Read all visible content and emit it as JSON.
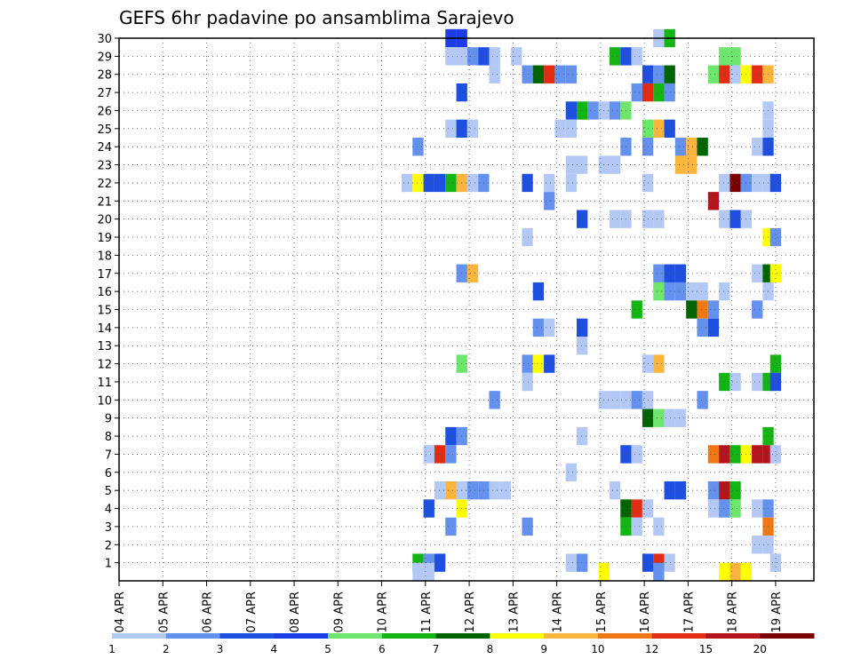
{
  "chart_data": {
    "type": "heatmap",
    "title": "GEFS 6hr padavine po ansamblima Sarajevo",
    "xlabel": "",
    "ylabel": "",
    "x_ticks": [
      "04 APR",
      "05 APR",
      "06 APR",
      "07 APR",
      "08 APR",
      "09 APR",
      "10 APR",
      "11 APR",
      "12 APR",
      "13 APR",
      "14 APR",
      "15 APR",
      "16 APR",
      "17 APR",
      "18 APR",
      "19 APR"
    ],
    "y_ticks": [
      "1",
      "2",
      "3",
      "4",
      "5",
      "6",
      "7",
      "8",
      "9",
      "10",
      "11",
      "12",
      "13",
      "14",
      "15",
      "16",
      "17",
      "18",
      "19",
      "20",
      "21",
      "22",
      "23",
      "24",
      "25",
      "26",
      "27",
      "28",
      "29",
      "30"
    ],
    "ylim": [
      0,
      30
    ],
    "grid": true,
    "color_levels": [
      "1",
      "2",
      "3",
      "4",
      "5",
      "6",
      "7",
      "8",
      "9",
      "10",
      "12",
      "15",
      "20"
    ],
    "colors": [
      "#b4c8f5",
      "#6490ee",
      "#1e4fe0",
      "#1e3ce6",
      "#6ee66e",
      "#14b414",
      "#006400",
      "#ffff00",
      "#fbb43c",
      "#f07814",
      "#e12d14",
      "#b4141e",
      "#780000"
    ],
    "cells": [
      {
        "member": 30,
        "x": 11.58,
        "v": 4
      },
      {
        "member": 30,
        "x": 11.83,
        "v": 4
      },
      {
        "member": 30,
        "x": 16.33,
        "v": 1
      },
      {
        "member": 30,
        "x": 16.58,
        "v": 6
      },
      {
        "member": 29,
        "x": 11.58,
        "v": 1
      },
      {
        "member": 29,
        "x": 11.83,
        "v": 1
      },
      {
        "member": 29,
        "x": 12.08,
        "v": 2
      },
      {
        "member": 29,
        "x": 12.33,
        "v": 3
      },
      {
        "member": 29,
        "x": 12.58,
        "v": 1
      },
      {
        "member": 29,
        "x": 13.08,
        "v": 1
      },
      {
        "member": 29,
        "x": 15.33,
        "v": 6
      },
      {
        "member": 29,
        "x": 15.58,
        "v": 3
      },
      {
        "member": 29,
        "x": 15.83,
        "v": 1
      },
      {
        "member": 29,
        "x": 17.83,
        "v": 5
      },
      {
        "member": 29,
        "x": 18.08,
        "v": 5
      },
      {
        "member": 28,
        "x": 12.58,
        "v": 1
      },
      {
        "member": 28,
        "x": 13.33,
        "v": 2
      },
      {
        "member": 28,
        "x": 13.58,
        "v": 7
      },
      {
        "member": 28,
        "x": 13.83,
        "v": 12
      },
      {
        "member": 28,
        "x": 14.08,
        "v": 2
      },
      {
        "member": 28,
        "x": 14.33,
        "v": 2
      },
      {
        "member": 28,
        "x": 16.08,
        "v": 3
      },
      {
        "member": 28,
        "x": 16.33,
        "v": 2
      },
      {
        "member": 28,
        "x": 16.58,
        "v": 7
      },
      {
        "member": 28,
        "x": 17.58,
        "v": 5
      },
      {
        "member": 28,
        "x": 17.83,
        "v": 12
      },
      {
        "member": 28,
        "x": 18.08,
        "v": 1
      },
      {
        "member": 28,
        "x": 18.33,
        "v": 8
      },
      {
        "member": 28,
        "x": 18.58,
        "v": 12
      },
      {
        "member": 28,
        "x": 18.83,
        "v": 9
      },
      {
        "member": 27,
        "x": 11.83,
        "v": 3
      },
      {
        "member": 27,
        "x": 15.83,
        "v": 2
      },
      {
        "member": 27,
        "x": 16.08,
        "v": 12
      },
      {
        "member": 27,
        "x": 16.33,
        "v": 6
      },
      {
        "member": 27,
        "x": 16.58,
        "v": 2
      },
      {
        "member": 26,
        "x": 14.33,
        "v": 3
      },
      {
        "member": 26,
        "x": 14.58,
        "v": 6
      },
      {
        "member": 26,
        "x": 14.83,
        "v": 2
      },
      {
        "member": 26,
        "x": 15.08,
        "v": 1
      },
      {
        "member": 26,
        "x": 15.33,
        "v": 2
      },
      {
        "member": 26,
        "x": 15.58,
        "v": 5
      },
      {
        "member": 26,
        "x": 18.83,
        "v": 1
      },
      {
        "member": 25,
        "x": 11.58,
        "v": 1
      },
      {
        "member": 25,
        "x": 11.83,
        "v": 3
      },
      {
        "member": 25,
        "x": 12.08,
        "v": 1
      },
      {
        "member": 25,
        "x": 14.08,
        "v": 1
      },
      {
        "member": 25,
        "x": 14.33,
        "v": 1
      },
      {
        "member": 25,
        "x": 16.08,
        "v": 5
      },
      {
        "member": 25,
        "x": 16.33,
        "v": 9
      },
      {
        "member": 25,
        "x": 16.58,
        "v": 3
      },
      {
        "member": 25,
        "x": 18.83,
        "v": 1
      },
      {
        "member": 24,
        "x": 10.83,
        "v": 2
      },
      {
        "member": 24,
        "x": 15.58,
        "v": 2
      },
      {
        "member": 24,
        "x": 16.08,
        "v": 2
      },
      {
        "member": 24,
        "x": 16.83,
        "v": 2
      },
      {
        "member": 24,
        "x": 17.08,
        "v": 9
      },
      {
        "member": 24,
        "x": 17.33,
        "v": 7
      },
      {
        "member": 24,
        "x": 18.58,
        "v": 1
      },
      {
        "member": 24,
        "x": 18.83,
        "v": 3
      },
      {
        "member": 23,
        "x": 14.33,
        "v": 1
      },
      {
        "member": 23,
        "x": 14.58,
        "v": 1
      },
      {
        "member": 23,
        "x": 15.08,
        "v": 1
      },
      {
        "member": 23,
        "x": 15.33,
        "v": 1
      },
      {
        "member": 23,
        "x": 16.83,
        "v": 9
      },
      {
        "member": 23,
        "x": 17.08,
        "v": 9
      },
      {
        "member": 22,
        "x": 10.58,
        "v": 1
      },
      {
        "member": 22,
        "x": 10.83,
        "v": 8
      },
      {
        "member": 22,
        "x": 11.08,
        "v": 3
      },
      {
        "member": 22,
        "x": 11.33,
        "v": 3
      },
      {
        "member": 22,
        "x": 11.58,
        "v": 6
      },
      {
        "member": 22,
        "x": 11.83,
        "v": 9
      },
      {
        "member": 22,
        "x": 12.08,
        "v": 1
      },
      {
        "member": 22,
        "x": 12.33,
        "v": 2
      },
      {
        "member": 22,
        "x": 13.33,
        "v": 3
      },
      {
        "member": 22,
        "x": 13.83,
        "v": 1
      },
      {
        "member": 22,
        "x": 14.33,
        "v": 1
      },
      {
        "member": 22,
        "x": 16.08,
        "v": 1
      },
      {
        "member": 22,
        "x": 17.83,
        "v": 1
      },
      {
        "member": 22,
        "x": 18.08,
        "v": 20
      },
      {
        "member": 22,
        "x": 18.33,
        "v": 2
      },
      {
        "member": 22,
        "x": 18.58,
        "v": 1
      },
      {
        "member": 22,
        "x": 18.83,
        "v": 1
      },
      {
        "member": 22,
        "x": 19.0,
        "v": 3
      },
      {
        "member": 21,
        "x": 13.83,
        "v": 2
      },
      {
        "member": 21,
        "x": 17.58,
        "v": 15
      },
      {
        "member": 20,
        "x": 14.58,
        "v": 3
      },
      {
        "member": 20,
        "x": 15.33,
        "v": 1
      },
      {
        "member": 20,
        "x": 15.58,
        "v": 1
      },
      {
        "member": 20,
        "x": 16.08,
        "v": 1
      },
      {
        "member": 20,
        "x": 16.33,
        "v": 1
      },
      {
        "member": 20,
        "x": 17.83,
        "v": 1
      },
      {
        "member": 20,
        "x": 18.08,
        "v": 3
      },
      {
        "member": 20,
        "x": 18.33,
        "v": 1
      },
      {
        "member": 19,
        "x": 13.33,
        "v": 1
      },
      {
        "member": 19,
        "x": 18.83,
        "v": 8
      },
      {
        "member": 19,
        "x": 19.0,
        "v": 2
      },
      {
        "member": 17,
        "x": 11.83,
        "v": 2
      },
      {
        "member": 17,
        "x": 12.08,
        "v": 9
      },
      {
        "member": 17,
        "x": 16.33,
        "v": 2
      },
      {
        "member": 17,
        "x": 16.58,
        "v": 3
      },
      {
        "member": 17,
        "x": 16.83,
        "v": 3
      },
      {
        "member": 17,
        "x": 18.58,
        "v": 1
      },
      {
        "member": 17,
        "x": 18.83,
        "v": 7
      },
      {
        "member": 17,
        "x": 19.0,
        "v": 8
      },
      {
        "member": 16,
        "x": 13.58,
        "v": 3
      },
      {
        "member": 16,
        "x": 16.33,
        "v": 5
      },
      {
        "member": 16,
        "x": 16.58,
        "v": 2
      },
      {
        "member": 16,
        "x": 16.83,
        "v": 2
      },
      {
        "member": 16,
        "x": 17.08,
        "v": 1
      },
      {
        "member": 16,
        "x": 17.33,
        "v": 1
      },
      {
        "member": 16,
        "x": 17.83,
        "v": 1
      },
      {
        "member": 16,
        "x": 18.83,
        "v": 1
      },
      {
        "member": 15,
        "x": 15.83,
        "v": 6
      },
      {
        "member": 15,
        "x": 17.08,
        "v": 7
      },
      {
        "member": 15,
        "x": 17.33,
        "v": 10
      },
      {
        "member": 15,
        "x": 17.58,
        "v": 2
      },
      {
        "member": 15,
        "x": 18.58,
        "v": 2
      },
      {
        "member": 14,
        "x": 13.58,
        "v": 2
      },
      {
        "member": 14,
        "x": 13.83,
        "v": 1
      },
      {
        "member": 14,
        "x": 14.58,
        "v": 3
      },
      {
        "member": 14,
        "x": 17.33,
        "v": 2
      },
      {
        "member": 14,
        "x": 17.58,
        "v": 3
      },
      {
        "member": 13,
        "x": 14.58,
        "v": 1
      },
      {
        "member": 12,
        "x": 11.83,
        "v": 5
      },
      {
        "member": 12,
        "x": 13.33,
        "v": 2
      },
      {
        "member": 12,
        "x": 13.58,
        "v": 8
      },
      {
        "member": 12,
        "x": 13.83,
        "v": 3
      },
      {
        "member": 12,
        "x": 16.08,
        "v": 1
      },
      {
        "member": 12,
        "x": 16.33,
        "v": 9
      },
      {
        "member": 12,
        "x": 19.0,
        "v": 6
      },
      {
        "member": 11,
        "x": 13.33,
        "v": 1
      },
      {
        "member": 11,
        "x": 17.83,
        "v": 6
      },
      {
        "member": 11,
        "x": 18.08,
        "v": 1
      },
      {
        "member": 11,
        "x": 18.58,
        "v": 1
      },
      {
        "member": 11,
        "x": 18.83,
        "v": 6
      },
      {
        "member": 11,
        "x": 19.0,
        "v": 3
      },
      {
        "member": 10,
        "x": 12.58,
        "v": 2
      },
      {
        "member": 10,
        "x": 15.08,
        "v": 1
      },
      {
        "member": 10,
        "x": 15.33,
        "v": 1
      },
      {
        "member": 10,
        "x": 15.58,
        "v": 1
      },
      {
        "member": 10,
        "x": 15.83,
        "v": 2
      },
      {
        "member": 10,
        "x": 16.08,
        "v": 1
      },
      {
        "member": 10,
        "x": 17.33,
        "v": 2
      },
      {
        "member": 9,
        "x": 16.08,
        "v": 7
      },
      {
        "member": 9,
        "x": 16.33,
        "v": 5
      },
      {
        "member": 9,
        "x": 16.58,
        "v": 1
      },
      {
        "member": 9,
        "x": 16.83,
        "v": 1
      },
      {
        "member": 8,
        "x": 11.58,
        "v": 3
      },
      {
        "member": 8,
        "x": 11.83,
        "v": 2
      },
      {
        "member": 8,
        "x": 14.58,
        "v": 1
      },
      {
        "member": 8,
        "x": 18.83,
        "v": 6
      },
      {
        "member": 7,
        "x": 11.08,
        "v": 1
      },
      {
        "member": 7,
        "x": 11.33,
        "v": 12
      },
      {
        "member": 7,
        "x": 11.58,
        "v": 2
      },
      {
        "member": 7,
        "x": 15.58,
        "v": 3
      },
      {
        "member": 7,
        "x": 15.83,
        "v": 1
      },
      {
        "member": 7,
        "x": 17.58,
        "v": 10
      },
      {
        "member": 7,
        "x": 17.83,
        "v": 15
      },
      {
        "member": 7,
        "x": 18.08,
        "v": 6
      },
      {
        "member": 7,
        "x": 18.33,
        "v": 8
      },
      {
        "member": 7,
        "x": 18.58,
        "v": 15
      },
      {
        "member": 7,
        "x": 18.83,
        "v": 15
      },
      {
        "member": 7,
        "x": 19.0,
        "v": 1
      },
      {
        "member": 6,
        "x": 14.33,
        "v": 1
      },
      {
        "member": 5,
        "x": 11.33,
        "v": 1
      },
      {
        "member": 5,
        "x": 11.58,
        "v": 9
      },
      {
        "member": 5,
        "x": 11.83,
        "v": 1
      },
      {
        "member": 5,
        "x": 12.08,
        "v": 2
      },
      {
        "member": 5,
        "x": 12.33,
        "v": 2
      },
      {
        "member": 5,
        "x": 12.58,
        "v": 1
      },
      {
        "member": 5,
        "x": 12.83,
        "v": 1
      },
      {
        "member": 5,
        "x": 15.33,
        "v": 1
      },
      {
        "member": 5,
        "x": 16.58,
        "v": 3
      },
      {
        "member": 5,
        "x": 16.83,
        "v": 3
      },
      {
        "member": 5,
        "x": 17.58,
        "v": 2
      },
      {
        "member": 5,
        "x": 17.83,
        "v": 15
      },
      {
        "member": 5,
        "x": 18.08,
        "v": 6
      },
      {
        "member": 4,
        "x": 11.08,
        "v": 3
      },
      {
        "member": 4,
        "x": 11.83,
        "v": 8
      },
      {
        "member": 4,
        "x": 15.58,
        "v": 7
      },
      {
        "member": 4,
        "x": 15.83,
        "v": 12
      },
      {
        "member": 4,
        "x": 16.08,
        "v": 1
      },
      {
        "member": 4,
        "x": 17.58,
        "v": 1
      },
      {
        "member": 4,
        "x": 17.83,
        "v": 2
      },
      {
        "member": 4,
        "x": 18.08,
        "v": 5
      },
      {
        "member": 4,
        "x": 18.58,
        "v": 1
      },
      {
        "member": 4,
        "x": 18.83,
        "v": 2
      },
      {
        "member": 3,
        "x": 11.58,
        "v": 2
      },
      {
        "member": 3,
        "x": 13.33,
        "v": 2
      },
      {
        "member": 3,
        "x": 15.58,
        "v": 6
      },
      {
        "member": 3,
        "x": 15.83,
        "v": 1
      },
      {
        "member": 3,
        "x": 16.33,
        "v": 1
      },
      {
        "member": 3,
        "x": 18.83,
        "v": 10
      },
      {
        "member": 2,
        "x": 18.58,
        "v": 1
      },
      {
        "member": 2,
        "x": 18.83,
        "v": 1
      },
      {
        "member": 1,
        "x": 10.83,
        "v": 6
      },
      {
        "member": 1,
        "x": 11.08,
        "v": 2
      },
      {
        "member": 1,
        "x": 11.33,
        "v": 3
      },
      {
        "member": 1,
        "x": 14.33,
        "v": 1
      },
      {
        "member": 1,
        "x": 14.58,
        "v": 2
      },
      {
        "member": 1,
        "x": 16.08,
        "v": 3
      },
      {
        "member": 1,
        "x": 16.33,
        "v": 12
      },
      {
        "member": 1,
        "x": 16.58,
        "v": 1
      },
      {
        "member": 1,
        "x": 19.0,
        "v": 1
      },
      {
        "member": 0.5,
        "x": 10.83,
        "v": 1
      },
      {
        "member": 0.5,
        "x": 11.08,
        "v": 1
      },
      {
        "member": 0.5,
        "x": 15.08,
        "v": 8
      },
      {
        "member": 0.5,
        "x": 16.33,
        "v": 2
      },
      {
        "member": 0.5,
        "x": 17.83,
        "v": 8
      },
      {
        "member": 0.5,
        "x": 18.08,
        "v": 9
      },
      {
        "member": 0.5,
        "x": 18.33,
        "v": 8
      }
    ]
  }
}
